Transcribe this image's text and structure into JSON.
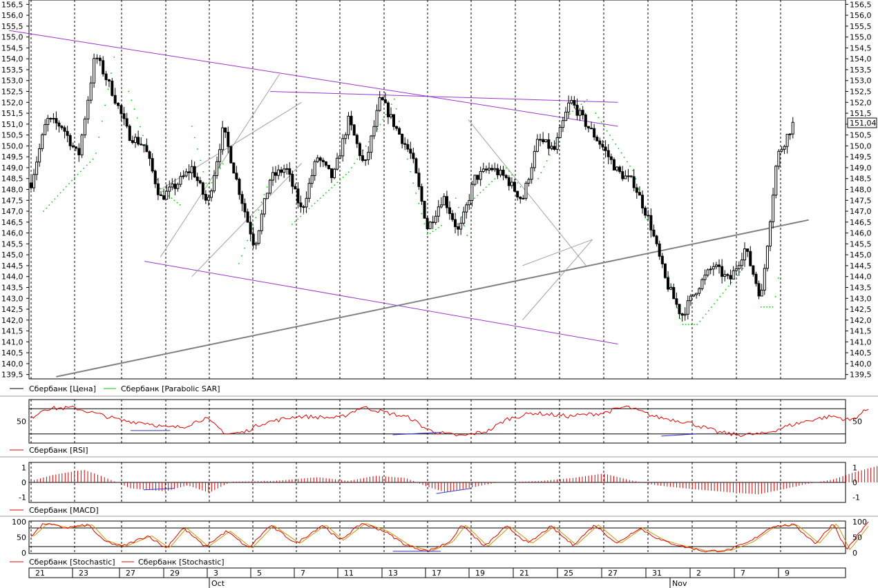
{
  "colors": {
    "price": "#000000",
    "sar": "#00cc00",
    "rsi": "#dd0000",
    "macd": "#cc0000",
    "stoch_k": "#dd0000",
    "stoch_d": "#c89600",
    "trend_purple": "#9933cc",
    "trend_gray": "#808080",
    "divergence": "#3333cc",
    "grid": "#000000"
  },
  "price_label": "151,04",
  "legends": {
    "price": [
      "Сбербанк [Цена]",
      "Сбербанк [Parabolic SAR]"
    ],
    "rsi": [
      "Сбербанк [RSI]"
    ],
    "macd": [
      "Сбербанк [MACD]"
    ],
    "stoch": [
      "Сбербанк [Stochastic]",
      "Сбербанк [Stochastic]"
    ]
  },
  "x_axis": {
    "day_labels": [
      "21",
      "23",
      "27",
      "29",
      "3",
      "5",
      "7",
      "11",
      "13",
      "17",
      "19",
      "21",
      "25",
      "27",
      "31",
      "2",
      "7",
      "9"
    ],
    "month_labels": [
      "Oct",
      "Nov"
    ]
  },
  "chart_data": [
    {
      "type": "candlestick",
      "name": "Сбербанк [Цена]",
      "y_ticks": [
        "156,5",
        "156,0",
        "155,5",
        "155,0",
        "154,5",
        "154,0",
        "153,5",
        "153,0",
        "152,5",
        "152,0",
        "151,5",
        "151,0",
        "150,5",
        "150,0",
        "149,5",
        "149,0",
        "148,5",
        "148,0",
        "147,5",
        "147,0",
        "146,5",
        "146,0",
        "145,5",
        "145,0",
        "144,5",
        "144,0",
        "143,5",
        "143,0",
        "142,5",
        "142,0",
        "141,5",
        "141,0",
        "140,5",
        "140,0",
        "139,5"
      ],
      "ylim": [
        139.3,
        156.7
      ],
      "close_path": [
        [
          0,
          148.3
        ],
        [
          0.5,
          151.2
        ],
        [
          1,
          150.9
        ],
        [
          1.5,
          149.5
        ],
        [
          2,
          154.2
        ],
        [
          2.5,
          152.5
        ],
        [
          3,
          150.5
        ],
        [
          3.5,
          150.0
        ],
        [
          4,
          147.6
        ],
        [
          4.5,
          148.2
        ],
        [
          5,
          149.0
        ],
        [
          5.5,
          147.3
        ],
        [
          6,
          150.8
        ],
        [
          6.5,
          148.0
        ],
        [
          7,
          145.4
        ],
        [
          7.5,
          148.5
        ],
        [
          8,
          149.0
        ],
        [
          8.5,
          147.0
        ],
        [
          9,
          149.5
        ],
        [
          9.5,
          148.5
        ],
        [
          10,
          151.2
        ],
        [
          10.5,
          149.0
        ],
        [
          11,
          152.2
        ],
        [
          11.5,
          150.8
        ],
        [
          12,
          149.5
        ],
        [
          12.5,
          146.2
        ],
        [
          13,
          147.7
        ],
        [
          13.5,
          146.0
        ],
        [
          14,
          148.5
        ],
        [
          14.5,
          149.0
        ],
        [
          15,
          148.5
        ],
        [
          15.5,
          147.5
        ],
        [
          16,
          150.3
        ],
        [
          16.5,
          149.8
        ],
        [
          17,
          152.1
        ],
        [
          17.5,
          151.0
        ],
        [
          18,
          150.0
        ],
        [
          18.5,
          148.8
        ],
        [
          19,
          148.3
        ],
        [
          19.5,
          146.5
        ],
        [
          20,
          143.8
        ],
        [
          20.5,
          142.2
        ],
        [
          21,
          143.5
        ],
        [
          21.5,
          144.5
        ],
        [
          22,
          143.8
        ],
        [
          22.5,
          145.3
        ],
        [
          23,
          143.0
        ],
        [
          23.5,
          149.5
        ],
        [
          24,
          151.0
        ]
      ],
      "sar_segments": [
        [
          [
            0.4,
            147.0
          ],
          [
            2.0,
            149.5
          ],
          [
            2.6,
            154.4
          ]
        ],
        [
          [
            3.0,
            152.5
          ],
          [
            4.0,
            148.0
          ],
          [
            4.7,
            147.2
          ]
        ],
        [
          [
            5.0,
            150.9
          ],
          [
            5.5,
            148.0
          ],
          [
            6.0,
            149.2
          ]
        ],
        [
          [
            6.5,
            144.6
          ],
          [
            7.5,
            148.5
          ],
          [
            8.0,
            149.0
          ]
        ],
        [
          [
            8.2,
            146.4
          ],
          [
            10.0,
            148.8
          ],
          [
            11.0,
            151.0
          ],
          [
            11.5,
            152.3
          ]
        ],
        [
          [
            11.5,
            151.7
          ],
          [
            12.0,
            148.5
          ],
          [
            12.5,
            145.9
          ],
          [
            13.0,
            146.4
          ]
        ],
        [
          [
            13.4,
            147.6
          ],
          [
            13.8,
            145.7
          ]
        ],
        [
          [
            14.0,
            147.6
          ],
          [
            15.0,
            149.0
          ],
          [
            15.5,
            148.0
          ]
        ],
        [
          [
            16.0,
            148.5
          ],
          [
            17.0,
            151.5
          ],
          [
            17.6,
            152.2
          ]
        ],
        [
          [
            17.8,
            151.5
          ],
          [
            19.0,
            148.8
          ],
          [
            19.5,
            146.2
          ]
        ],
        [
          [
            20.0,
            144.5
          ],
          [
            20.5,
            141.8
          ],
          [
            21.0,
            141.8
          ],
          [
            22.5,
            144.5
          ]
        ],
        [
          [
            23.0,
            142.6
          ],
          [
            23.4,
            142.6
          ],
          [
            23.6,
            144.5
          ]
        ]
      ],
      "trendlines": [
        {
          "color": "purple",
          "points": [
            [
              -0.7,
              155.3
            ],
            [
              18.5,
              150.9
            ]
          ]
        },
        {
          "color": "purple",
          "points": [
            [
              3.5,
              144.7
            ],
            [
              18.5,
              140.9
            ]
          ]
        },
        {
          "color": "purple",
          "points": [
            [
              7.5,
              152.5
            ],
            [
              18.5,
              152.0
            ]
          ]
        },
        {
          "color": "gray",
          "width": 2,
          "points": [
            [
              0.8,
              139.4
            ],
            [
              24.5,
              146.6
            ]
          ]
        },
        {
          "color": "lightgray",
          "points": [
            [
              4.0,
              144.9
            ],
            [
              7.8,
              153.3
            ]
          ]
        },
        {
          "color": "lightgray",
          "points": [
            [
              4.0,
              148.0
            ],
            [
              8.5,
              152.0
            ]
          ]
        },
        {
          "color": "lightgray",
          "points": [
            [
              5.0,
              144.0
            ],
            [
              8.5,
              149.2
            ]
          ]
        },
        {
          "color": "lightgray",
          "points": [
            [
              13.8,
              151.2
            ],
            [
              17.5,
              144.5
            ]
          ]
        },
        {
          "color": "lightgray",
          "points": [
            [
              15.5,
              144.5
            ],
            [
              17.7,
              145.7
            ]
          ]
        },
        {
          "color": "lightgray",
          "points": [
            [
              15.5,
              142.0
            ],
            [
              17.7,
              145.7
            ]
          ]
        }
      ]
    },
    {
      "type": "line",
      "name": "Сбербанк [RSI]",
      "y_ticks": [
        "50"
      ],
      "ylim": [
        0,
        100
      ],
      "levels": [
        20,
        80
      ],
      "path": [
        [
          0,
          58
        ],
        [
          0.3,
          80
        ],
        [
          1,
          82
        ],
        [
          1.6,
          64
        ],
        [
          2,
          52
        ],
        [
          2.6,
          46
        ],
        [
          3,
          35
        ],
        [
          3.4,
          37
        ],
        [
          3.9,
          58
        ],
        [
          4.4,
          20
        ],
        [
          4.8,
          24
        ],
        [
          5.2,
          45
        ],
        [
          6,
          62
        ],
        [
          7,
          58
        ],
        [
          7.5,
          84
        ],
        [
          8,
          72
        ],
        [
          8.6,
          58
        ],
        [
          9.0,
          30
        ],
        [
          9.4,
          20
        ],
        [
          9.8,
          15
        ],
        [
          10.4,
          28
        ],
        [
          10.8,
          55
        ],
        [
          11.4,
          70
        ],
        [
          12.2,
          62
        ],
        [
          13.0,
          70
        ],
        [
          13.5,
          85
        ],
        [
          14.2,
          60
        ],
        [
          14.9,
          48
        ],
        [
          15.6,
          24
        ],
        [
          16.0,
          18
        ],
        [
          16.6,
          20
        ],
        [
          17.2,
          40
        ],
        [
          17.8,
          56
        ],
        [
          18.2,
          62
        ],
        [
          18.6,
          52
        ],
        [
          19.0,
          80
        ]
      ],
      "divergences": [
        [
          [
            2.2,
            28
          ],
          [
            3.1,
            28
          ]
        ],
        [
          [
            8.2,
            18
          ],
          [
            9.3,
            24
          ]
        ],
        [
          [
            14.3,
            15
          ],
          [
            15.1,
            20
          ]
        ]
      ]
    },
    {
      "type": "bar",
      "name": "Сбербанк [MACD]",
      "y_ticks": [
        "1",
        "0",
        "-1"
      ],
      "ylim": [
        -1.3,
        1.3
      ],
      "profile": [
        [
          0,
          0.1
        ],
        [
          0.5,
          0.5
        ],
        [
          1.2,
          0.85
        ],
        [
          1.6,
          0.4
        ],
        [
          2.2,
          -0.4
        ],
        [
          3.0,
          -0.6
        ],
        [
          3.5,
          -0.2
        ],
        [
          4.0,
          -0.7
        ],
        [
          4.5,
          0.05
        ],
        [
          5.5,
          0.1
        ],
        [
          6.5,
          0.35
        ],
        [
          7.2,
          0.1
        ],
        [
          7.8,
          0.45
        ],
        [
          8.5,
          0.3
        ],
        [
          9.0,
          -0.3
        ],
        [
          9.4,
          -0.65
        ],
        [
          10.0,
          -0.35
        ],
        [
          10.6,
          0
        ],
        [
          11.6,
          0.1
        ],
        [
          12.3,
          0.3
        ],
        [
          13.0,
          0.6
        ],
        [
          13.6,
          0.15
        ],
        [
          14.2,
          -0.2
        ],
        [
          15.0,
          -0.45
        ],
        [
          16.0,
          -0.7
        ],
        [
          16.5,
          -0.8
        ],
        [
          17.0,
          -0.5
        ],
        [
          17.6,
          -0.1
        ],
        [
          18.2,
          0.2
        ],
        [
          18.7,
          0.7
        ],
        [
          19.2,
          1.1
        ]
      ],
      "divergences": [
        [
          [
            2.5,
            -0.5
          ],
          [
            3.2,
            -0.4
          ]
        ],
        [
          [
            9.2,
            -0.75
          ],
          [
            10.0,
            -0.4
          ]
        ]
      ]
    },
    {
      "type": "line",
      "name": "Сбербанк [Stochastic]",
      "y_ticks": [
        "100",
        "50",
        "0"
      ],
      "ylim": [
        0,
        100
      ],
      "levels": [
        20,
        80
      ],
      "path": [
        [
          0,
          55
        ],
        [
          0.3,
          95
        ],
        [
          0.8,
          80
        ],
        [
          1.3,
          90
        ],
        [
          1.6,
          40
        ],
        [
          2,
          20
        ],
        [
          2.6,
          55
        ],
        [
          3,
          15
        ],
        [
          3.4,
          80
        ],
        [
          3.9,
          20
        ],
        [
          4.4,
          70
        ],
        [
          4.9,
          15
        ],
        [
          5.4,
          88
        ],
        [
          6.0,
          30
        ],
        [
          6.6,
          90
        ],
        [
          7.0,
          40
        ],
        [
          7.5,
          95
        ],
        [
          8.0,
          70
        ],
        [
          8.5,
          25
        ],
        [
          9.0,
          5
        ],
        [
          9.5,
          35
        ],
        [
          9.8,
          90
        ],
        [
          10.3,
          20
        ],
        [
          10.8,
          85
        ],
        [
          11.3,
          30
        ],
        [
          11.8,
          85
        ],
        [
          12.3,
          25
        ],
        [
          12.8,
          90
        ],
        [
          13.3,
          30
        ],
        [
          13.8,
          80
        ],
        [
          14.3,
          40
        ],
        [
          14.8,
          20
        ],
        [
          15.3,
          5
        ],
        [
          15.8,
          8
        ],
        [
          16.3,
          35
        ],
        [
          16.8,
          85
        ],
        [
          17.3,
          90
        ],
        [
          17.8,
          30
        ],
        [
          18.2,
          95
        ],
        [
          18.5,
          10
        ],
        [
          19.0,
          100
        ]
      ],
      "divergences": [
        [
          [
            8.2,
            5
          ],
          [
            9.3,
            5
          ]
        ]
      ]
    }
  ]
}
